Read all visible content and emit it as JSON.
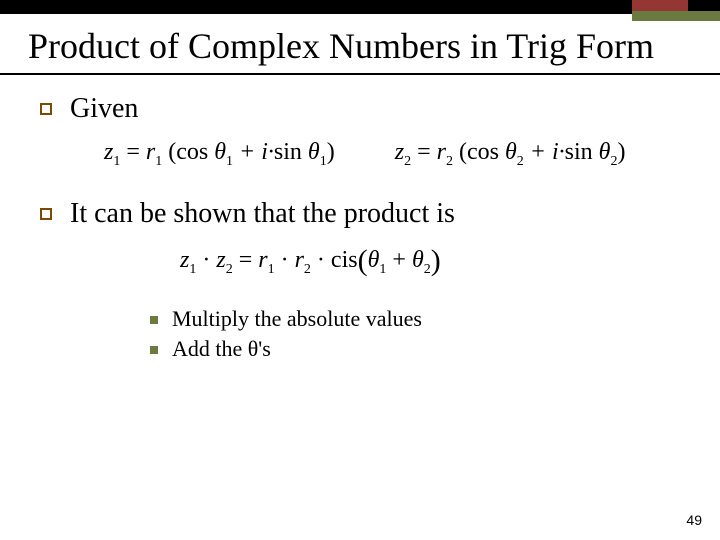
{
  "colors": {
    "topbar": "#000000",
    "accent_red": "#943634",
    "accent_green": "#6b7a3e",
    "bullet_border": "#7a4b00",
    "sub_bullet_fill": "#6b7a3e",
    "background": "#ffffff",
    "text": "#000000"
  },
  "title": "Product of Complex Numbers in Trig Form",
  "bullets": {
    "given": "Given",
    "product": "It can be shown that the product is"
  },
  "formulas": {
    "z1_lhs": "z",
    "z1_sub": "1",
    "eq": " = ",
    "r1": "r",
    "r1_sub": "1",
    "lparen": "(",
    "cos": "cos",
    "theta": "θ",
    "t1_sub": "1",
    "plus_i": " + i·",
    "sin": "sin",
    "rparen": ")",
    "z2_sub": "2",
    "r2_sub": "2",
    "t2_sub": "2",
    "dot": "·",
    "cis": "cis",
    "plus": " + "
  },
  "sub_bullets": {
    "a": "Multiply the absolute values",
    "b": "Add the θ's"
  },
  "slide_number": "49"
}
